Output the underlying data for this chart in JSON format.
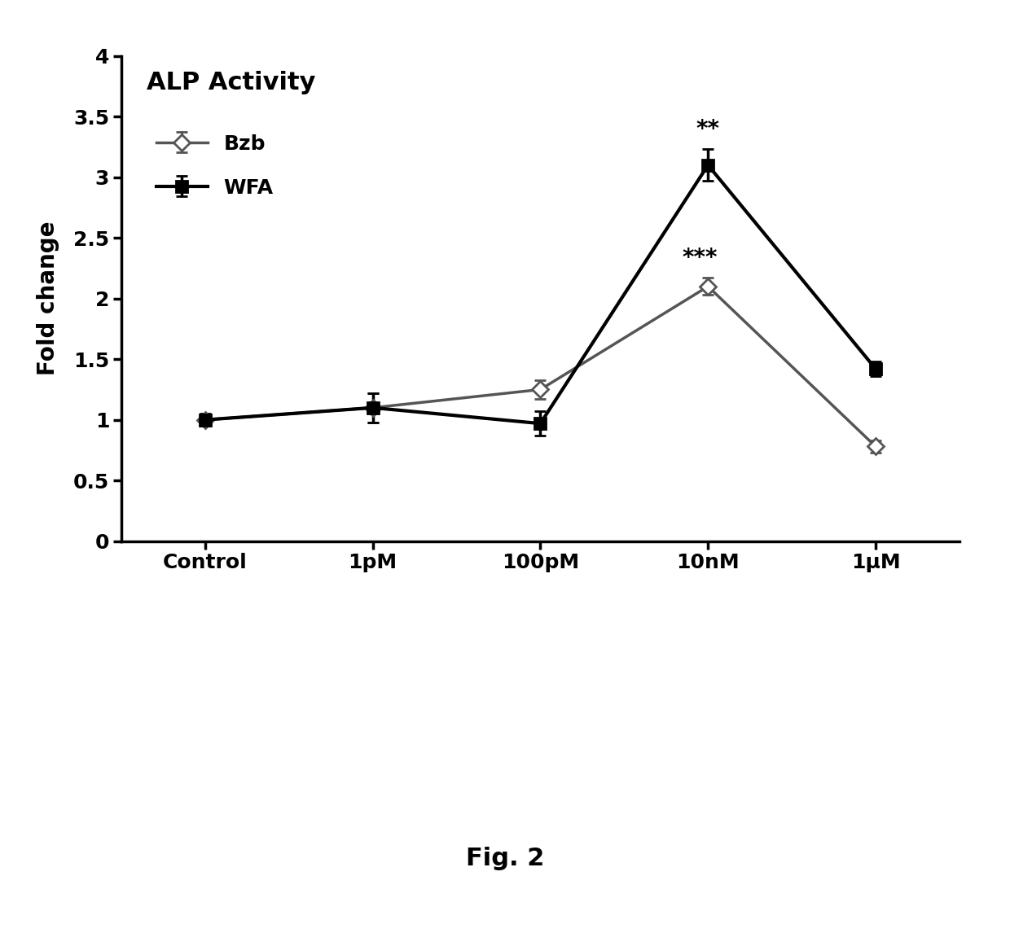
{
  "title": "ALP Activity",
  "ylabel": "Fold change",
  "fig_caption": "Fig. 2",
  "categories": [
    "Control",
    "1pM",
    "100pM",
    "10nM",
    "1μM"
  ],
  "bzb_values": [
    1.0,
    1.1,
    1.25,
    2.1,
    0.78
  ],
  "bzb_yerr": [
    0.04,
    0.12,
    0.08,
    0.07,
    0.05
  ],
  "wfa_values": [
    1.0,
    1.1,
    0.97,
    3.1,
    1.42
  ],
  "wfa_yerr": [
    0.05,
    0.12,
    0.1,
    0.13,
    0.06
  ],
  "bzb_color": "#555555",
  "wfa_color": "#000000",
  "ylim": [
    0,
    4
  ],
  "yticks": [
    0,
    0.5,
    1.0,
    1.5,
    2.0,
    2.5,
    3.0,
    3.5,
    4.0
  ],
  "ytick_labels": [
    "0",
    "0.5",
    "1",
    "1.5",
    "2",
    "2.5",
    "3",
    "3.5",
    "4"
  ],
  "title_fontsize": 22,
  "label_fontsize": 20,
  "tick_fontsize": 18,
  "legend_fontsize": 18,
  "annotation_bzb": "***",
  "annotation_wfa": "**",
  "background_color": "#ffffff"
}
